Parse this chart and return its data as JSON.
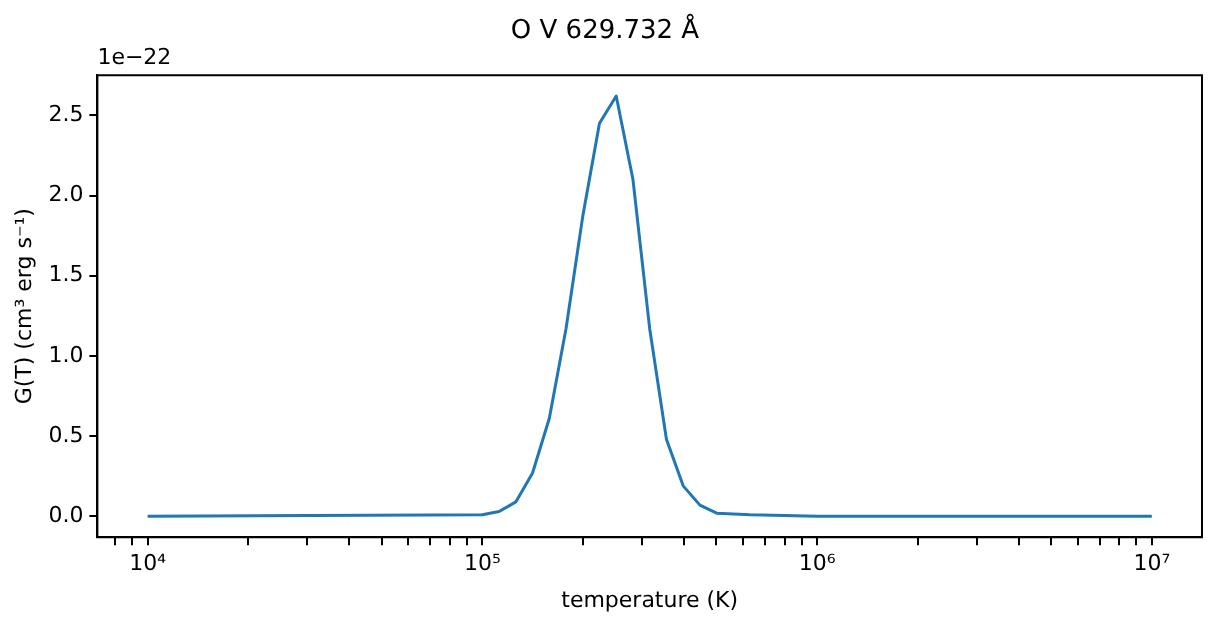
{
  "chart_data": {
    "type": "line",
    "title": "O V 629.732 Å",
    "xlabel": "temperature (K)",
    "ylabel": "G(T) (cm³ erg s⁻¹)",
    "annotations": [
      "1e−22"
    ],
    "x": [
      10000,
      100000,
      112202,
      125893,
      141254,
      158489,
      177828,
      199526,
      223872,
      251189,
      281838,
      316228,
      354813,
      398107,
      446684,
      501187,
      630957,
      1000000,
      10000000
    ],
    "series": [
      {
        "color": "#1f77b4",
        "values": [
          0,
          0.01,
          0.03,
          0.09,
          0.27,
          0.61,
          1.17,
          1.87,
          2.45,
          2.62,
          2.1,
          1.17,
          0.48,
          0.19,
          0.07,
          0.02,
          0.01,
          0,
          0
        ]
      }
    ],
    "log": "x",
    "xlim": [
      7079,
      14125375
    ],
    "ylim": [
      -0.13,
      2.75
    ],
    "xticks": [
      {
        "value": 10000,
        "label": "10⁴"
      },
      {
        "value": 100000,
        "label": "10⁵"
      },
      {
        "value": 1000000,
        "label": "10⁶"
      },
      {
        "value": 10000000,
        "label": "10⁷"
      },
      {
        "value": 8000,
        "label": null
      },
      {
        "value": 9000,
        "label": null
      },
      {
        "value": 20000,
        "label": null
      },
      {
        "value": 30000,
        "label": null
      },
      {
        "value": 40000,
        "label": null
      },
      {
        "value": 50000,
        "label": null
      },
      {
        "value": 60000,
        "label": null
      },
      {
        "value": 70000,
        "label": null
      },
      {
        "value": 80000,
        "label": null
      },
      {
        "value": 90000,
        "label": null
      },
      {
        "value": 200000,
        "label": null
      },
      {
        "value": 300000,
        "label": null
      },
      {
        "value": 400000,
        "label": null
      },
      {
        "value": 500000,
        "label": null
      },
      {
        "value": 600000,
        "label": null
      },
      {
        "value": 700000,
        "label": null
      },
      {
        "value": 800000,
        "label": null
      },
      {
        "value": 900000,
        "label": null
      },
      {
        "value": 2000000,
        "label": null
      },
      {
        "value": 3000000,
        "label": null
      },
      {
        "value": 4000000,
        "label": null
      },
      {
        "value": 5000000,
        "label": null
      },
      {
        "value": 6000000,
        "label": null
      },
      {
        "value": 7000000,
        "label": null
      },
      {
        "value": 8000000,
        "label": null
      },
      {
        "value": 9000000,
        "label": null
      }
    ],
    "yticks": [
      {
        "value": 0,
        "label": "0.0"
      },
      {
        "value": 0.5,
        "label": "0.5"
      },
      {
        "value": 1,
        "label": "1.0"
      },
      {
        "value": 1.5,
        "label": "1.5"
      },
      {
        "value": 2,
        "label": "2.0"
      },
      {
        "value": 2.5,
        "label": "2.5"
      }
    ],
    "grid": false,
    "legend": false,
    "marker": "none",
    "line_style": "solid"
  }
}
